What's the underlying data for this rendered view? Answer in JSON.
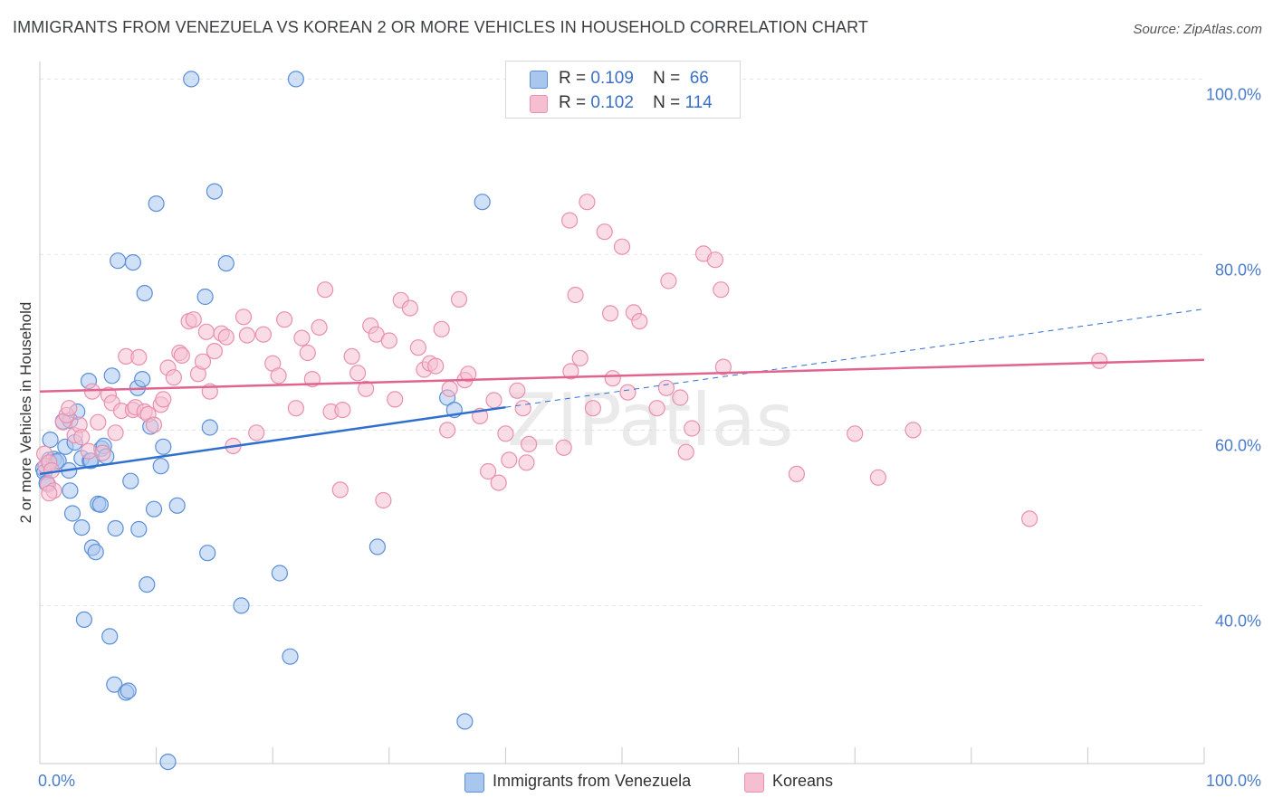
{
  "title": "IMMIGRANTS FROM VENEZUELA VS KOREAN 2 OR MORE VEHICLES IN HOUSEHOLD CORRELATION CHART",
  "source": "Source: ZipAtlas.com",
  "legend": {
    "r_label": "R =",
    "n_label": "N =",
    "rows": [
      {
        "r": "0.109",
        "n": "66"
      },
      {
        "r": "0.102",
        "n": "114"
      }
    ]
  },
  "bottom_legend": [
    "Immigrants from Venezuela",
    "Koreans"
  ],
  "colors": {
    "blue_fill": "#a9c6ee",
    "blue_stroke": "#5b8fd6",
    "blue_line": "#2f6fcf",
    "pink_fill": "#f6bfd1",
    "pink_stroke": "#e890ae",
    "pink_line": "#e0648f",
    "axis_text": "#4a7cc9",
    "grid": "#e2e2e2"
  },
  "watermark": "ZIPatlas",
  "chart_data": {
    "type": "scatter",
    "xlabel": "",
    "ylabel": "2 or more Vehicles in Household",
    "xlim": [
      0,
      100
    ],
    "ylim": [
      22,
      102
    ],
    "x_tick_labels": [
      "0.0%",
      "100.0%"
    ],
    "y_ticks": [
      100,
      80,
      60,
      40
    ],
    "y_tick_labels": [
      "100.0%",
      "80.0%",
      "60.0%",
      "40.0%"
    ],
    "grid": true,
    "legend_position": "top-center",
    "series": [
      {
        "name": "Immigrants from Venezuela",
        "trend": {
          "x0": 0,
          "y0": 55.0,
          "x1": 40,
          "y1": 62.6,
          "dash_x1": 100,
          "dash_y1": 73.8
        },
        "points": [
          [
            0.3,
            55.6
          ],
          [
            0.4,
            55.2
          ],
          [
            0.6,
            53.9
          ],
          [
            0.6,
            54.0
          ],
          [
            0.8,
            56.6
          ],
          [
            0.9,
            58.9
          ],
          [
            1.2,
            56.7
          ],
          [
            1.4,
            56.4
          ],
          [
            1.6,
            56.5
          ],
          [
            2.0,
            61.0
          ],
          [
            2.2,
            58.1
          ],
          [
            2.5,
            55.4
          ],
          [
            2.6,
            61.1
          ],
          [
            2.6,
            53.1
          ],
          [
            2.8,
            50.5
          ],
          [
            3.0,
            58.6
          ],
          [
            3.2,
            62.1
          ],
          [
            3.6,
            56.8
          ],
          [
            3.6,
            48.9
          ],
          [
            3.8,
            38.4
          ],
          [
            4.2,
            65.6
          ],
          [
            4.3,
            56.5
          ],
          [
            4.4,
            56.5
          ],
          [
            4.5,
            46.6
          ],
          [
            4.8,
            46.1
          ],
          [
            5.0,
            51.6
          ],
          [
            5.2,
            51.5
          ],
          [
            5.3,
            57.9
          ],
          [
            5.5,
            58.2
          ],
          [
            5.7,
            57.0
          ],
          [
            6.0,
            36.5
          ],
          [
            6.2,
            66.2
          ],
          [
            6.4,
            31.0
          ],
          [
            6.5,
            48.8
          ],
          [
            6.7,
            79.3
          ],
          [
            7.4,
            30.1
          ],
          [
            7.6,
            30.3
          ],
          [
            7.8,
            54.2
          ],
          [
            8.0,
            79.1
          ],
          [
            8.4,
            64.8
          ],
          [
            8.5,
            48.7
          ],
          [
            8.8,
            65.8
          ],
          [
            9.0,
            75.6
          ],
          [
            9.2,
            42.4
          ],
          [
            9.5,
            60.4
          ],
          [
            9.8,
            51.0
          ],
          [
            10.0,
            85.8
          ],
          [
            10.4,
            55.9
          ],
          [
            10.6,
            58.1
          ],
          [
            11.0,
            22.2
          ],
          [
            11.8,
            51.4
          ],
          [
            13.0,
            100.0
          ],
          [
            14.2,
            75.2
          ],
          [
            14.4,
            46.0
          ],
          [
            14.6,
            60.3
          ],
          [
            15.0,
            87.2
          ],
          [
            16.0,
            79.0
          ],
          [
            17.3,
            40.0
          ],
          [
            20.6,
            43.7
          ],
          [
            21.5,
            34.2
          ],
          [
            22.0,
            100.0
          ],
          [
            29.0,
            46.7
          ],
          [
            35.0,
            63.7
          ],
          [
            35.6,
            62.3
          ],
          [
            36.5,
            26.8
          ],
          [
            38.0,
            86.0
          ]
        ]
      },
      {
        "name": "Koreans",
        "trend": {
          "x0": 0,
          "y0": 64.4,
          "x1": 100,
          "y1": 68.0
        },
        "points": [
          [
            0.4,
            57.3
          ],
          [
            0.5,
            55.9
          ],
          [
            0.7,
            53.8
          ],
          [
            0.8,
            56.3
          ],
          [
            1.0,
            55.4
          ],
          [
            1.2,
            53.1
          ],
          [
            2.0,
            60.9
          ],
          [
            2.3,
            61.7
          ],
          [
            2.5,
            62.5
          ],
          [
            3.0,
            59.4
          ],
          [
            3.4,
            60.6
          ],
          [
            3.6,
            59.2
          ],
          [
            4.2,
            57.6
          ],
          [
            4.5,
            64.4
          ],
          [
            5.0,
            60.9
          ],
          [
            5.4,
            57.4
          ],
          [
            5.9,
            64.0
          ],
          [
            6.2,
            63.1
          ],
          [
            6.5,
            59.7
          ],
          [
            7.0,
            62.2
          ],
          [
            7.4,
            68.4
          ],
          [
            8.0,
            62.3
          ],
          [
            8.2,
            62.6
          ],
          [
            8.5,
            68.3
          ],
          [
            9.0,
            62.1
          ],
          [
            9.3,
            61.8
          ],
          [
            9.8,
            60.6
          ],
          [
            10.4,
            62.9
          ],
          [
            10.6,
            63.5
          ],
          [
            11.0,
            67.1
          ],
          [
            11.5,
            66.0
          ],
          [
            12.0,
            68.8
          ],
          [
            12.2,
            68.5
          ],
          [
            12.8,
            72.4
          ],
          [
            13.2,
            72.6
          ],
          [
            13.6,
            66.4
          ],
          [
            14.0,
            67.8
          ],
          [
            14.3,
            71.2
          ],
          [
            14.6,
            64.4
          ],
          [
            15.0,
            69.0
          ],
          [
            15.6,
            71.0
          ],
          [
            16.0,
            70.6
          ],
          [
            16.6,
            58.2
          ],
          [
            17.5,
            72.9
          ],
          [
            17.8,
            70.8
          ],
          [
            18.6,
            59.7
          ],
          [
            19.2,
            70.9
          ],
          [
            20.0,
            67.6
          ],
          [
            20.5,
            66.2
          ],
          [
            21.0,
            72.6
          ],
          [
            22.0,
            62.5
          ],
          [
            22.5,
            70.5
          ],
          [
            23.0,
            68.8
          ],
          [
            23.4,
            65.8
          ],
          [
            24.0,
            71.7
          ],
          [
            24.5,
            76.0
          ],
          [
            25.0,
            62.1
          ],
          [
            25.8,
            53.2
          ],
          [
            26.0,
            62.3
          ],
          [
            26.8,
            68.4
          ],
          [
            27.3,
            66.5
          ],
          [
            28.0,
            64.7
          ],
          [
            28.4,
            71.9
          ],
          [
            28.9,
            70.9
          ],
          [
            29.5,
            52.0
          ],
          [
            30.0,
            70.2
          ],
          [
            30.5,
            63.5
          ],
          [
            31.0,
            74.8
          ],
          [
            31.8,
            73.9
          ],
          [
            32.5,
            69.4
          ],
          [
            33.0,
            66.9
          ],
          [
            33.5,
            67.6
          ],
          [
            34.0,
            67.3
          ],
          [
            34.5,
            71.5
          ],
          [
            35.0,
            60.0
          ],
          [
            35.2,
            64.7
          ],
          [
            36.0,
            74.9
          ],
          [
            36.5,
            65.7
          ],
          [
            36.8,
            66.4
          ],
          [
            37.8,
            61.6
          ],
          [
            38.5,
            55.3
          ],
          [
            39.0,
            63.4
          ],
          [
            39.4,
            54.0
          ],
          [
            40.0,
            59.6
          ],
          [
            40.3,
            56.6
          ],
          [
            41.0,
            64.5
          ],
          [
            41.5,
            62.5
          ],
          [
            41.8,
            56.3
          ],
          [
            42.0,
            58.4
          ],
          [
            45.0,
            58.0
          ],
          [
            45.5,
            83.9
          ],
          [
            45.6,
            66.7
          ],
          [
            46.0,
            75.4
          ],
          [
            46.4,
            68.2
          ],
          [
            47.0,
            86.0
          ],
          [
            47.5,
            62.5
          ],
          [
            48.5,
            82.6
          ],
          [
            49.0,
            73.3
          ],
          [
            49.2,
            65.9
          ],
          [
            50.0,
            80.9
          ],
          [
            50.5,
            64.3
          ],
          [
            51.0,
            73.4
          ],
          [
            51.5,
            72.4
          ],
          [
            53.0,
            62.5
          ],
          [
            53.8,
            64.8
          ],
          [
            54.0,
            77.0
          ],
          [
            55.0,
            63.7
          ],
          [
            55.5,
            57.5
          ],
          [
            56.0,
            60.2
          ],
          [
            57.0,
            80.1
          ],
          [
            58.0,
            79.4
          ],
          [
            58.5,
            76.0
          ],
          [
            58.7,
            67.2
          ],
          [
            65.0,
            55.0
          ],
          [
            70.0,
            59.6
          ],
          [
            72.0,
            54.6
          ],
          [
            75.0,
            60.0
          ],
          [
            85.0,
            49.9
          ],
          [
            91.0,
            67.9
          ],
          [
            0.8,
            52.8
          ]
        ]
      }
    ]
  }
}
